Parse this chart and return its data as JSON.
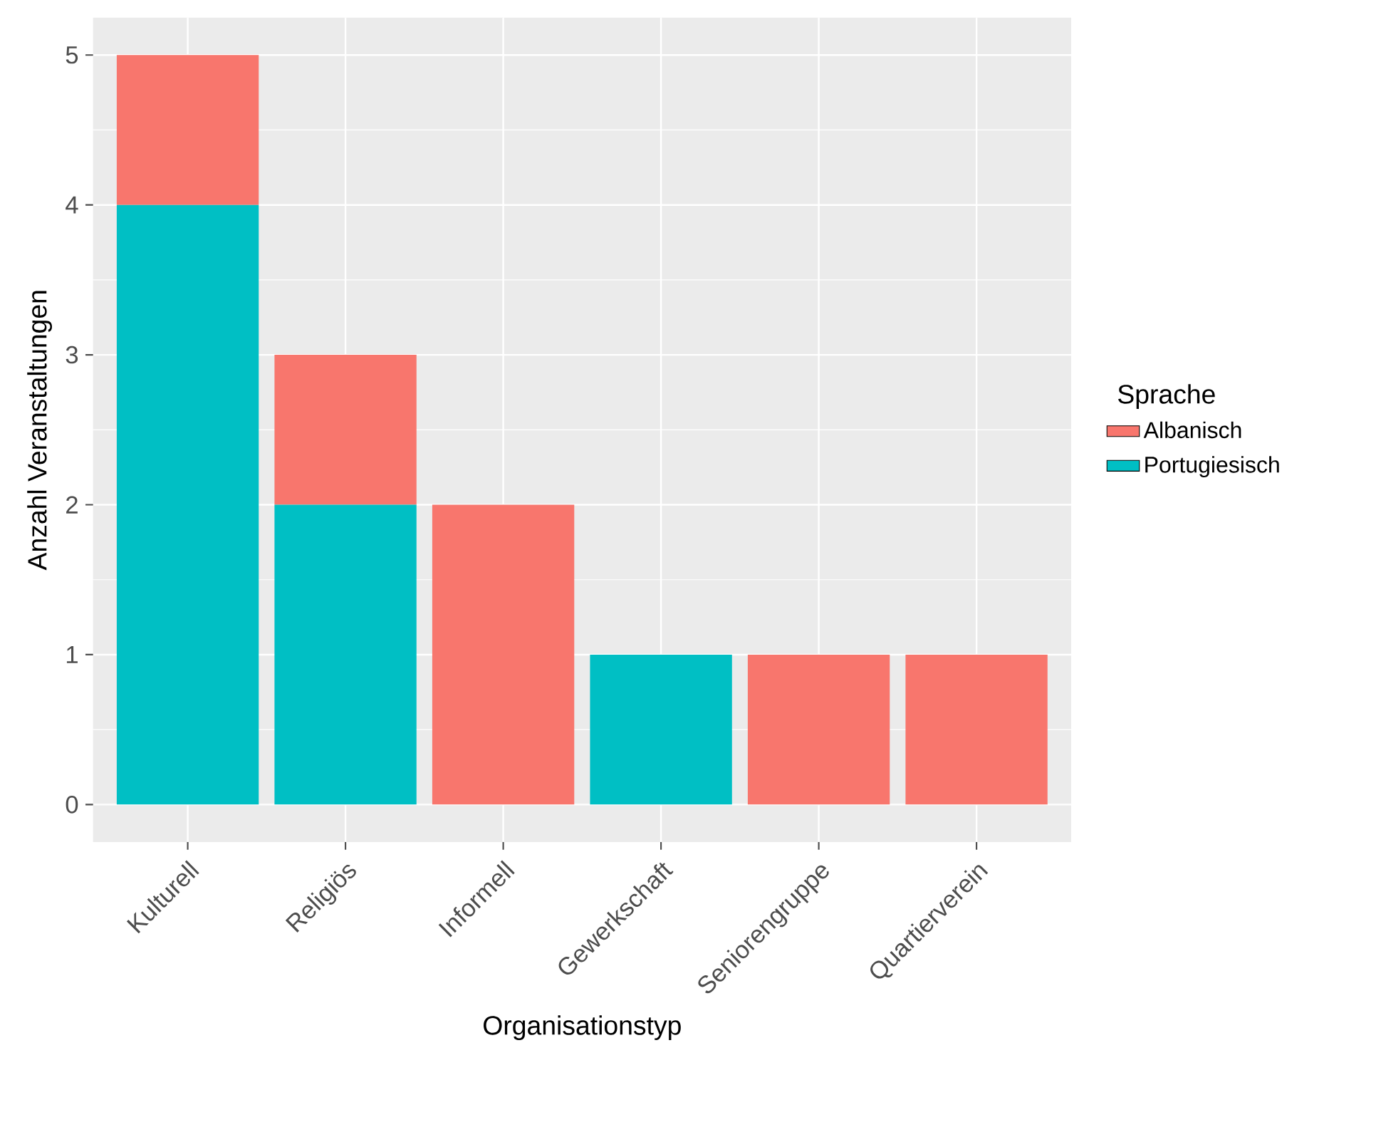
{
  "chart_data": {
    "type": "bar",
    "stacked": true,
    "xlabel": "Organisationstyp",
    "ylabel": "Anzahl Veranstaltungen",
    "legend_title": "Sprache",
    "legend": "right",
    "grid": true,
    "categories": [
      "Kulturell",
      "Religiös",
      "Informell",
      "Gewerkschaft",
      "Seniorengruppe",
      "Quartierverein"
    ],
    "series": [
      {
        "name": "Portugiesisch",
        "color": "#00bfc4",
        "values": [
          4,
          2,
          0,
          1,
          0,
          0
        ]
      },
      {
        "name": "Albanisch",
        "color": "#f8766d",
        "values": [
          1,
          1,
          2,
          0,
          1,
          1
        ]
      }
    ],
    "ylim": [
      -0.25,
      5.25
    ],
    "yticks": [
      0,
      1,
      2,
      3,
      4,
      5
    ]
  }
}
